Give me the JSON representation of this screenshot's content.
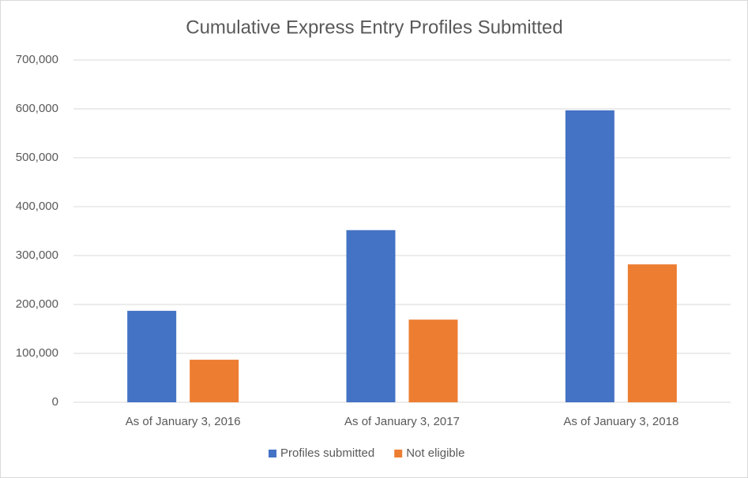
{
  "chart_data": {
    "type": "bar",
    "title": "Cumulative Express Entry Profiles Submitted",
    "categories": [
      "As of January 3, 2016",
      "As of January 3, 2017",
      "As of January 3, 2018"
    ],
    "series": [
      {
        "name": "Profiles submitted",
        "color": "#4472c4",
        "values": [
          187000,
          352000,
          597000
        ]
      },
      {
        "name": "Not eligible",
        "color": "#ed7d31",
        "values": [
          87000,
          169000,
          282000
        ]
      }
    ],
    "ylim": [
      0,
      700000
    ],
    "yticks": [
      0,
      {
        "value": 100000,
        "label": "100,000"
      },
      {
        "value": 200000,
        "label": "200,000"
      },
      {
        "value": 300000,
        "label": "300,000"
      },
      {
        "value": 400000,
        "label": "400,000"
      },
      {
        "value": 500000,
        "label": "500,000"
      },
      {
        "value": 600000,
        "label": "600,000"
      },
      {
        "value": 700000,
        "label": "700,000"
      }
    ],
    "grid": true,
    "legend": "bottom"
  }
}
